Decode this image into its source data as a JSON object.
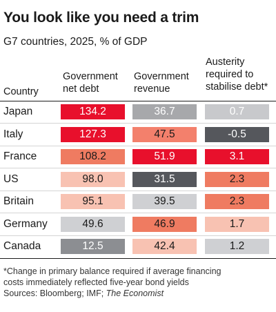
{
  "chart_data": {
    "type": "table",
    "title": "You look like you need a trim",
    "subtitle": "G7 countries, 2025, % of GDP",
    "columns": [
      {
        "line1": "",
        "line2": "",
        "line3": "Country"
      },
      {
        "line1": "",
        "line2": "Government",
        "line3": "net debt"
      },
      {
        "line1": "",
        "line2": "Government",
        "line3": "revenue"
      },
      {
        "line1": "Austerity",
        "line2": "required to",
        "line3": "stabilise debt*"
      }
    ],
    "rows": [
      {
        "country": "Japan",
        "net_debt": "134.2",
        "revenue": "36.7",
        "austerity": "0.7",
        "colors": [
          "#e8102c",
          "#a7a8ab",
          "#c8c9cc"
        ],
        "text_colors": [
          "#ffffff",
          "#ffffff",
          "#ffffff"
        ]
      },
      {
        "country": "Italy",
        "net_debt": "127.3",
        "revenue": "47.5",
        "austerity": "-0.5",
        "colors": [
          "#e8102c",
          "#f3806c",
          "#55575c"
        ],
        "text_colors": [
          "#ffffff",
          "#1a1a1a",
          "#ffffff"
        ]
      },
      {
        "country": "France",
        "net_debt": "108.2",
        "revenue": "51.9",
        "austerity": "3.1",
        "colors": [
          "#ef7b61",
          "#e8102c",
          "#e8102c"
        ],
        "text_colors": [
          "#1a1a1a",
          "#ffffff",
          "#ffffff"
        ]
      },
      {
        "country": "US",
        "net_debt": "98.0",
        "revenue": "31.5",
        "austerity": "2.3",
        "colors": [
          "#f8c2b2",
          "#55575c",
          "#ef7b61"
        ],
        "text_colors": [
          "#1a1a1a",
          "#ffffff",
          "#1a1a1a"
        ]
      },
      {
        "country": "Britain",
        "net_debt": "95.1",
        "revenue": "39.5",
        "austerity": "2.3",
        "colors": [
          "#f8c2b2",
          "#cfd0d3",
          "#ef7b61"
        ],
        "text_colors": [
          "#1a1a1a",
          "#1a1a1a",
          "#1a1a1a"
        ]
      },
      {
        "country": "Germany",
        "net_debt": "49.6",
        "revenue": "46.9",
        "austerity": "1.7",
        "colors": [
          "#cfd0d3",
          "#ef7b61",
          "#f8c2b2"
        ],
        "text_colors": [
          "#1a1a1a",
          "#1a1a1a",
          "#1a1a1a"
        ]
      },
      {
        "country": "Canada",
        "net_debt": "12.5",
        "revenue": "42.4",
        "austerity": "1.2",
        "colors": [
          "#8c8e92",
          "#f8c2b2",
          "#cfd0d3"
        ],
        "text_colors": [
          "#ffffff",
          "#1a1a1a",
          "#1a1a1a"
        ]
      }
    ]
  },
  "footnote": {
    "line1": "*Change in primary balance required if average financing",
    "line2": "costs immediately reflected five-year bond yields",
    "sources_prefix": "Sources: Bloomberg; IMF; ",
    "sources_italic": "The Economist"
  }
}
